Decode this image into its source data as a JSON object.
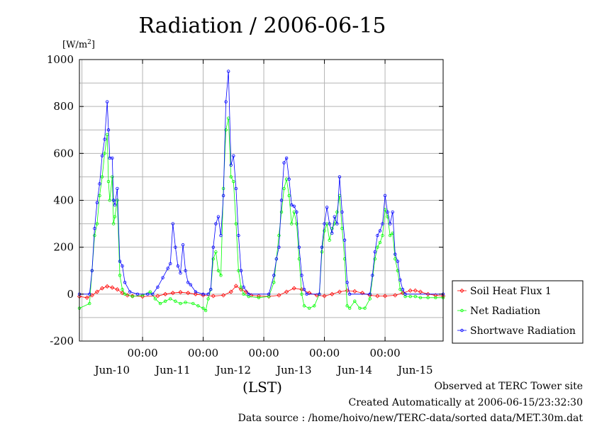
{
  "chart_data": {
    "type": "line",
    "title": "Radiation / 2006-06-15",
    "y_unit": "[W/m2]",
    "xlabel": "(LST)",
    "ylim": [
      -200,
      1000
    ],
    "yticks": [
      -200,
      0,
      200,
      400,
      600,
      800,
      1000
    ],
    "xlim": [
      -1,
      143
    ],
    "x_axis_start": "2006-06-10 00:00",
    "x_time_labels": [
      {
        "x": 24,
        "label": "00:00"
      },
      {
        "x": 48,
        "label": "00:00"
      },
      {
        "x": 72,
        "label": "00:00"
      },
      {
        "x": 96,
        "label": "00:00"
      },
      {
        "x": 120,
        "label": "00:00"
      }
    ],
    "x_day_labels": [
      {
        "x": 12,
        "label": "Jun-10"
      },
      {
        "x": 36,
        "label": "Jun-11"
      },
      {
        "x": 60,
        "label": "Jun-12"
      },
      {
        "x": 84,
        "label": "Jun-13"
      },
      {
        "x": 108,
        "label": "Jun-14"
      },
      {
        "x": 132,
        "label": "Jun-15"
      }
    ],
    "x_gridlines": [
      0,
      24,
      48,
      72,
      96,
      120
    ],
    "y_gridlines": [
      -100,
      0,
      100,
      200,
      300,
      400,
      500,
      600,
      700,
      800,
      900
    ],
    "grid": true,
    "legend_position": "right-bottom",
    "series": [
      {
        "name": "Soil Heat Flux 1",
        "color": "#ff0000",
        "marker": "diamond",
        "points": [
          [
            -1,
            -10
          ],
          [
            2,
            -15
          ],
          [
            4,
            -5
          ],
          [
            6,
            10
          ],
          [
            8,
            25
          ],
          [
            10,
            33
          ],
          [
            12,
            28
          ],
          [
            14,
            20
          ],
          [
            16,
            5
          ],
          [
            18,
            -5
          ],
          [
            20,
            -8
          ],
          [
            24,
            -10
          ],
          [
            30,
            -8
          ],
          [
            33,
            0
          ],
          [
            36,
            5
          ],
          [
            39,
            8
          ],
          [
            42,
            5
          ],
          [
            45,
            0
          ],
          [
            48,
            -5
          ],
          [
            52,
            -8
          ],
          [
            56,
            -5
          ],
          [
            59,
            10
          ],
          [
            61,
            35
          ],
          [
            63,
            20
          ],
          [
            65,
            10
          ],
          [
            67,
            -5
          ],
          [
            70,
            -8
          ],
          [
            74,
            -10
          ],
          [
            78,
            -5
          ],
          [
            81,
            10
          ],
          [
            84,
            25
          ],
          [
            87,
            20
          ],
          [
            90,
            5
          ],
          [
            93,
            -5
          ],
          [
            96,
            -8
          ],
          [
            99,
            0
          ],
          [
            102,
            10
          ],
          [
            105,
            15
          ],
          [
            108,
            12
          ],
          [
            111,
            5
          ],
          [
            114,
            -5
          ],
          [
            117,
            -8
          ],
          [
            120,
            -8
          ],
          [
            124,
            -5
          ],
          [
            127,
            5
          ],
          [
            130,
            15
          ],
          [
            132,
            15
          ],
          [
            134,
            10
          ],
          [
            137,
            0
          ],
          [
            140,
            -5
          ],
          [
            143,
            -8
          ]
        ]
      },
      {
        "name": "Net Radiation",
        "color": "#00ff00",
        "marker": "circle",
        "points": [
          [
            -1,
            -60
          ],
          [
            3,
            -40
          ],
          [
            4,
            100
          ],
          [
            5,
            250
          ],
          [
            6,
            300
          ],
          [
            7,
            420
          ],
          [
            8,
            500
          ],
          [
            9,
            600
          ],
          [
            10,
            680
          ],
          [
            10.5,
            480
          ],
          [
            11,
            400
          ],
          [
            12,
            500
          ],
          [
            12.5,
            300
          ],
          [
            13,
            330
          ],
          [
            14,
            400
          ],
          [
            15,
            80
          ],
          [
            16,
            20
          ],
          [
            17,
            0
          ],
          [
            20,
            -10
          ],
          [
            24,
            -5
          ],
          [
            27,
            10
          ],
          [
            29,
            -20
          ],
          [
            31,
            -40
          ],
          [
            33,
            -30
          ],
          [
            35,
            -20
          ],
          [
            37,
            -30
          ],
          [
            39,
            -40
          ],
          [
            41,
            -35
          ],
          [
            44,
            -40
          ],
          [
            46,
            -50
          ],
          [
            48,
            -60
          ],
          [
            49,
            -70
          ],
          [
            50,
            -20
          ],
          [
            51,
            20
          ],
          [
            52,
            150
          ],
          [
            53,
            180
          ],
          [
            54,
            100
          ],
          [
            55,
            80
          ],
          [
            56,
            450
          ],
          [
            57,
            700
          ],
          [
            58,
            750
          ],
          [
            59,
            500
          ],
          [
            60,
            480
          ],
          [
            61,
            300
          ],
          [
            62,
            100
          ],
          [
            63,
            30
          ],
          [
            64,
            0
          ],
          [
            66,
            -10
          ],
          [
            70,
            -15
          ],
          [
            74,
            -10
          ],
          [
            76,
            50
          ],
          [
            77,
            150
          ],
          [
            78,
            250
          ],
          [
            79,
            350
          ],
          [
            80,
            450
          ],
          [
            81,
            490
          ],
          [
            82,
            420
          ],
          [
            83,
            300
          ],
          [
            84,
            350
          ],
          [
            85,
            300
          ],
          [
            86,
            150
          ],
          [
            87,
            0
          ],
          [
            88,
            -50
          ],
          [
            90,
            -60
          ],
          [
            92,
            -50
          ],
          [
            94,
            0
          ],
          [
            95,
            180
          ],
          [
            96,
            270
          ],
          [
            97,
            300
          ],
          [
            98,
            230
          ],
          [
            99,
            280
          ],
          [
            100,
            300
          ],
          [
            101,
            350
          ],
          [
            102,
            420
          ],
          [
            103,
            280
          ],
          [
            104,
            150
          ],
          [
            105,
            -50
          ],
          [
            106,
            -60
          ],
          [
            108,
            -30
          ],
          [
            110,
            -60
          ],
          [
            112,
            -60
          ],
          [
            114,
            -20
          ],
          [
            116,
            150
          ],
          [
            117,
            200
          ],
          [
            118,
            220
          ],
          [
            119,
            250
          ],
          [
            120,
            360
          ],
          [
            121,
            330
          ],
          [
            122,
            250
          ],
          [
            123,
            260
          ],
          [
            124,
            150
          ],
          [
            125,
            100
          ],
          [
            126,
            20
          ],
          [
            128,
            -10
          ],
          [
            130,
            -10
          ],
          [
            132,
            -10
          ],
          [
            134,
            -15
          ],
          [
            137,
            -15
          ],
          [
            140,
            -15
          ],
          [
            143,
            -15
          ]
        ]
      },
      {
        "name": "Shortwave Radiation",
        "color": "#0000ff",
        "marker": "circle",
        "points": [
          [
            -1,
            0
          ],
          [
            3,
            0
          ],
          [
            4,
            100
          ],
          [
            5,
            280
          ],
          [
            6,
            390
          ],
          [
            7,
            470
          ],
          [
            8,
            590
          ],
          [
            9,
            660
          ],
          [
            10,
            820
          ],
          [
            10.5,
            700
          ],
          [
            11,
            580
          ],
          [
            12,
            580
          ],
          [
            12.5,
            400
          ],
          [
            13,
            380
          ],
          [
            14,
            450
          ],
          [
            15,
            140
          ],
          [
            16,
            120
          ],
          [
            17,
            50
          ],
          [
            19,
            10
          ],
          [
            22,
            0
          ],
          [
            26,
            0
          ],
          [
            28,
            0
          ],
          [
            30,
            30
          ],
          [
            32,
            70
          ],
          [
            34,
            110
          ],
          [
            35,
            130
          ],
          [
            36,
            300
          ],
          [
            37,
            200
          ],
          [
            38,
            120
          ],
          [
            39,
            90
          ],
          [
            40,
            210
          ],
          [
            41,
            100
          ],
          [
            42,
            50
          ],
          [
            43,
            40
          ],
          [
            45,
            10
          ],
          [
            48,
            0
          ],
          [
            50,
            0
          ],
          [
            51,
            20
          ],
          [
            52,
            200
          ],
          [
            53,
            300
          ],
          [
            54,
            330
          ],
          [
            55,
            250
          ],
          [
            56,
            420
          ],
          [
            57,
            820
          ],
          [
            58,
            950
          ],
          [
            59,
            550
          ],
          [
            60,
            590
          ],
          [
            61,
            450
          ],
          [
            62,
            250
          ],
          [
            63,
            100
          ],
          [
            64,
            30
          ],
          [
            66,
            0
          ],
          [
            74,
            0
          ],
          [
            76,
            80
          ],
          [
            77,
            150
          ],
          [
            78,
            200
          ],
          [
            79,
            400
          ],
          [
            80,
            560
          ],
          [
            81,
            580
          ],
          [
            82,
            490
          ],
          [
            83,
            380
          ],
          [
            84,
            375
          ],
          [
            85,
            350
          ],
          [
            86,
            200
          ],
          [
            87,
            80
          ],
          [
            88,
            20
          ],
          [
            89,
            0
          ],
          [
            94,
            0
          ],
          [
            95,
            200
          ],
          [
            96,
            300
          ],
          [
            97,
            370
          ],
          [
            98,
            300
          ],
          [
            99,
            260
          ],
          [
            100,
            330
          ],
          [
            101,
            300
          ],
          [
            102,
            500
          ],
          [
            103,
            350
          ],
          [
            104,
            230
          ],
          [
            105,
            50
          ],
          [
            106,
            0
          ],
          [
            114,
            0
          ],
          [
            115,
            80
          ],
          [
            116,
            180
          ],
          [
            117,
            250
          ],
          [
            118,
            270
          ],
          [
            119,
            300
          ],
          [
            120,
            420
          ],
          [
            121,
            350
          ],
          [
            122,
            300
          ],
          [
            123,
            350
          ],
          [
            124,
            170
          ],
          [
            125,
            140
          ],
          [
            126,
            60
          ],
          [
            127,
            20
          ],
          [
            128,
            0
          ],
          [
            143,
            0
          ]
        ]
      }
    ]
  },
  "footer": {
    "line1": "Observed at TERC Tower site",
    "line2": "Created Automatically at 2006-06-15/23:32:30",
    "line3": "Data source : /home/hoivo/new/TERC-data/sorted  data/MET.30m.dat"
  }
}
